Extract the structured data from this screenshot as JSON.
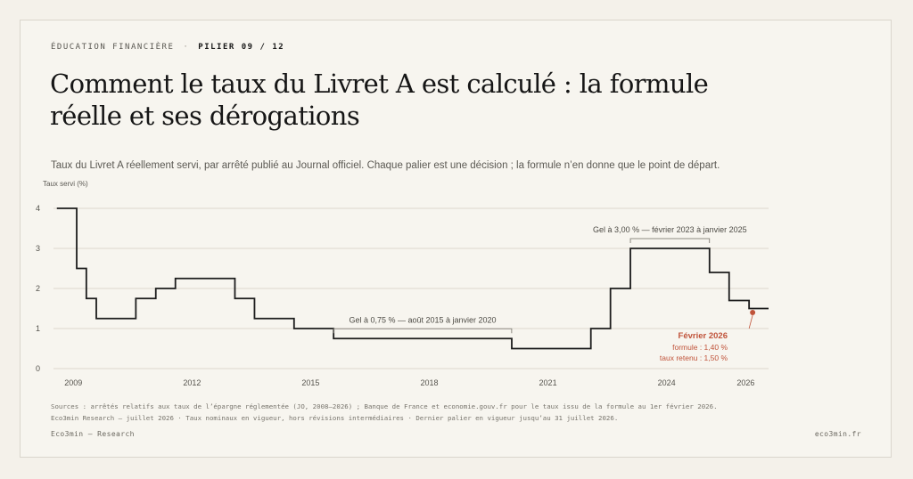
{
  "header": {
    "kicker": "ÉDUCATION FINANCIÈRE",
    "separator": "·",
    "pillar": "PILIER 09 / 12",
    "title": "Comment le taux du Livret A est calculé : la formule réelle et ses dérogations",
    "subtitle": "Taux du Livret A réellement servi, par arrêté publié au Journal officiel. Chaque palier est une décision ; la formule n’en donne que le point de départ."
  },
  "footer": {
    "sources": "Sources : arrêtés relatifs aux taux de l’épargne réglementée (JO, 2008–2026) ; Banque de France et economie.gouv.fr pour le taux issu de la formule au 1er février 2026.",
    "notes": "Eco3min Research — juillet 2026 · Taux nominaux en vigueur, hors révisions intermédiaires · Dernier palier en vigueur jusqu’au 31 juillet 2026.",
    "brand": "Eco3min — Research",
    "site": "eco3min.fr"
  },
  "colors": {
    "line": "#1c1c1c",
    "grid": "#dcd8ce",
    "accent": "#c0533a",
    "bracket": "#8d8a82"
  },
  "chart_data": {
    "type": "line",
    "step": true,
    "ylabel": "Taux servi (%)",
    "ylim": [
      0,
      4
    ],
    "yticks": [
      0,
      1,
      2,
      3,
      4
    ],
    "xlim": [
      "2008-07-01",
      "2026-07-31"
    ],
    "xticks": [
      "2009",
      "2012",
      "2015",
      "2018",
      "2021",
      "2024",
      "2026"
    ],
    "grid": true,
    "series": [
      {
        "points": [
          [
            "2008-08-01",
            4
          ],
          [
            "2009-02-01",
            2.5
          ],
          [
            "2009-05-01",
            1.75
          ],
          [
            "2009-08-01",
            1.25
          ],
          [
            "2010-08-01",
            1.75
          ],
          [
            "2011-02-01",
            2
          ],
          [
            "2011-08-01",
            2.25
          ],
          [
            "2013-02-01",
            1.75
          ],
          [
            "2013-08-01",
            1.25
          ],
          [
            "2014-08-01",
            1
          ],
          [
            "2015-08-01",
            0.75
          ],
          [
            "2020-02-01",
            0.5
          ],
          [
            "2022-02-01",
            1
          ],
          [
            "2022-08-01",
            2
          ],
          [
            "2023-02-01",
            3
          ],
          [
            "2025-02-01",
            2.4
          ],
          [
            "2025-08-01",
            1.7
          ],
          [
            "2026-02-01",
            1.5
          ],
          [
            "2026-07-31",
            1.5
          ]
        ]
      }
    ],
    "annotations": [
      {
        "label": "Gel à 0,75 % — août 2015 à janvier 2020",
        "from": "2015-08-01",
        "to": "2020-01-31"
      },
      {
        "label": "Gel à 3,00 % — février 2023 à janvier 2025",
        "from": "2023-02-01",
        "to": "2025-01-31"
      }
    ],
    "highlight": {
      "date": "2026-02-01",
      "value": 1.4,
      "title": "Février 2026",
      "line1": "formule : 1,40 %",
      "line2": "taux retenu : 1,50 %"
    }
  }
}
